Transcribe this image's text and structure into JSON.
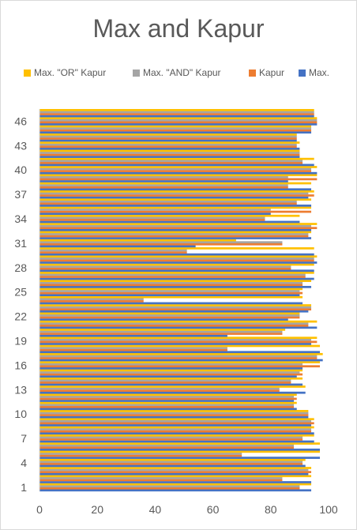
{
  "chart_data": {
    "type": "bar",
    "orientation": "horizontal",
    "title": "Max and Kapur",
    "xlabel": "",
    "ylabel": "",
    "xlim": [
      0,
      100
    ],
    "x_ticks": [
      0,
      20,
      40,
      60,
      80,
      100
    ],
    "y_tick_labels": [
      "1",
      "4",
      "7",
      "10",
      "13",
      "16",
      "19",
      "22",
      "25",
      "28",
      "31",
      "34",
      "37",
      "40",
      "43",
      "46"
    ],
    "grid": false,
    "legend_position": "top",
    "categories": [
      1,
      2,
      3,
      4,
      5,
      6,
      7,
      8,
      9,
      10,
      11,
      12,
      13,
      14,
      15,
      16,
      17,
      18,
      19,
      20,
      21,
      22,
      23,
      24,
      25,
      26,
      27,
      28,
      29,
      30,
      31,
      32,
      33,
      34,
      35,
      36,
      37,
      38,
      39,
      40,
      41,
      42,
      43,
      44,
      45,
      46,
      47
    ],
    "series": [
      {
        "name": "Max.",
        "color": "#4472c4",
        "values": [
          94,
          94,
          93,
          92,
          97,
          97,
          95,
          95,
          94,
          93,
          89,
          88,
          92,
          91,
          89,
          91,
          98,
          97,
          94,
          65,
          96,
          86,
          93,
          91,
          90,
          94,
          95,
          95,
          96,
          95,
          54,
          94,
          94,
          90,
          80,
          94,
          93,
          94,
          86,
          96,
          95,
          90,
          90,
          89,
          94,
          96,
          95
        ]
      },
      {
        "name": "Kapur",
        "color": "#ed7d31",
        "values": [
          90,
          84,
          94,
          91,
          70,
          88,
          91,
          94,
          95,
          93,
          88,
          89,
          83,
          87,
          91,
          97,
          96,
          65,
          96,
          84,
          93,
          90,
          94,
          36,
          91,
          91,
          92,
          87,
          95,
          51,
          84,
          93,
          96,
          78,
          94,
          89,
          95,
          86,
          96,
          94,
          91,
          90,
          89,
          89,
          94,
          96,
          95
        ]
      },
      {
        "name": "Max. \"AND\" Kapur",
        "color": "#a5a5a5",
        "values": [
          90,
          84,
          93,
          91,
          70,
          88,
          91,
          94,
          94,
          93,
          88,
          88,
          83,
          87,
          90,
          91,
          96,
          65,
          94,
          84,
          93,
          90,
          94,
          36,
          90,
          91,
          92,
          87,
          95,
          51,
          84,
          93,
          94,
          78,
          80,
          89,
          93,
          86,
          86,
          94,
          91,
          90,
          89,
          89,
          94,
          96,
          95
        ]
      },
      {
        "name": "Max. \"OR\" Kapur",
        "color": "#ffc000",
        "values": [
          94,
          94,
          94,
          92,
          97,
          97,
          95,
          95,
          95,
          93,
          89,
          89,
          92,
          91,
          91,
          97,
          98,
          97,
          96,
          85,
          96,
          90,
          94,
          91,
          91,
          94,
          95,
          95,
          96,
          95,
          68,
          94,
          96,
          90,
          94,
          94,
          95,
          94,
          96,
          96,
          95,
          90,
          90,
          89,
          94,
          96,
          95
        ]
      }
    ]
  }
}
